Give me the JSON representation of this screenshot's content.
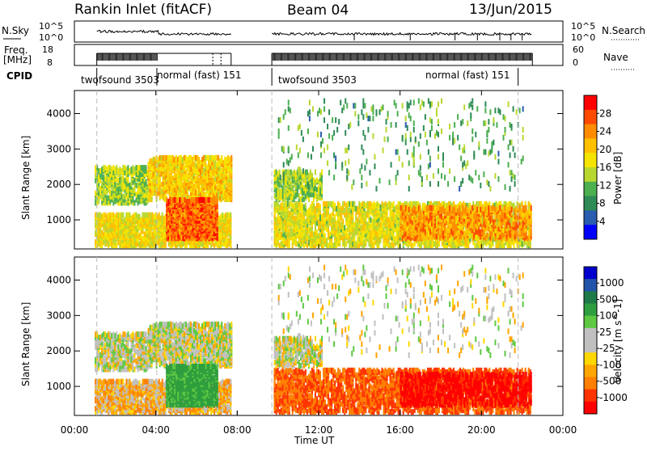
{
  "chart_data": {
    "type": "heatmap",
    "header": {
      "station": "Rankin Inlet (fitACF)",
      "beam": "Beam 04",
      "date": "13/Jun/2015"
    },
    "time_axis": {
      "label": "Time UT",
      "range_hours": [
        0,
        24
      ],
      "ticks": [
        "00:00",
        "04:00",
        "08:00",
        "12:00",
        "16:00",
        "20:00",
        "00:00"
      ],
      "tick_hours": [
        0,
        4,
        8,
        12,
        16,
        20,
        24
      ]
    },
    "data_gaps_hours": [
      [
        7.7,
        9.7
      ],
      [
        22.5,
        24
      ]
    ],
    "mode_boundaries_hours": [
      1.1,
      4.05,
      9.7,
      21.8
    ],
    "noise_panel": {
      "left_label": "N.Sky",
      "right_label": "N.Search",
      "left_ticks": [
        "10^5",
        "10^0"
      ],
      "right_ticks": [
        "10^5",
        "10^0"
      ]
    },
    "freq_panel": {
      "left_label_top": "Freq.",
      "left_label_bottom": "[MHz]",
      "right_label": "Nave",
      "left_ticks": [
        18,
        8
      ],
      "right_ticks": [
        60,
        0
      ]
    },
    "cpid": {
      "label": "CPID",
      "segments": [
        {
          "text": "twofsound 3503",
          "start_hour": 0.0
        },
        {
          "text": "normal (fast) 151",
          "start_hour": 4.05
        },
        {
          "text": "twofsound 3503",
          "start_hour": 9.7
        },
        {
          "text": "normal (fast) 151",
          "start_hour": 17.6
        }
      ]
    },
    "range_axis": {
      "label": "Slant Range [km]",
      "range_km": [
        180,
        4650
      ],
      "ticks": [
        1000,
        2000,
        3000,
        4000
      ]
    },
    "panels": [
      {
        "name": "Power",
        "colorbar_label": "Power [dB]",
        "colorbar_ticks": [
          "28",
          "24",
          "20",
          "16",
          "12",
          "8",
          "4"
        ],
        "colors_top_to_bottom": [
          "#ff0000",
          "#ff4a00",
          "#ff8c00",
          "#ffc000",
          "#f5e400",
          "#b8d830",
          "#4caf50",
          "#2e8b57",
          "#2a5db0",
          "#0000ff"
        ]
      },
      {
        "name": "Velocity",
        "colorbar_label": "Velocity [m s^-1]",
        "colorbar_ticks": [
          "1000",
          "500",
          "100",
          "25",
          "-25",
          "-100",
          "-500",
          "-1000"
        ],
        "colors_top_to_bottom": [
          "#0000cc",
          "#2255aa",
          "#1f7a4a",
          "#2e9e3e",
          "#5ec842",
          "#c0c0c0",
          "#c0c0c0",
          "#ffd700",
          "#ffa500",
          "#ff7f00",
          "#ff3300",
          "#ff0000"
        ]
      }
    ],
    "echo_regions": [
      {
        "t": [
          1.0,
          7.7
        ],
        "r": [
          200,
          1100
        ],
        "pow": 18,
        "vel": -60,
        "dens": 0.7
      },
      {
        "t": [
          1.0,
          3.6
        ],
        "r": [
          1400,
          2400
        ],
        "pow": 14,
        "vel": 10,
        "dens": 0.55
      },
      {
        "t": [
          3.6,
          7.7
        ],
        "r": [
          1500,
          2700
        ],
        "pow": 20,
        "vel": 10,
        "dens": 0.65
      },
      {
        "t": [
          4.5,
          7.0
        ],
        "r": [
          400,
          1500
        ],
        "pow": 27,
        "vel": 150,
        "dens": 0.85
      },
      {
        "t": [
          9.8,
          22.4
        ],
        "r": [
          200,
          1400
        ],
        "pow": 17,
        "vel": -250,
        "dens": 0.55
      },
      {
        "t": [
          9.8,
          12.2
        ],
        "r": [
          1500,
          2300
        ],
        "pow": 14,
        "vel": 10,
        "dens": 0.5
      },
      {
        "t": [
          16.0,
          22.4
        ],
        "r": [
          400,
          1300
        ],
        "pow": 24,
        "vel": -550,
        "dens": 0.5
      },
      {
        "t": [
          10.0,
          22.0
        ],
        "r": [
          1800,
          4300
        ],
        "pow": 10,
        "vel": 0,
        "dens": 0.04
      }
    ]
  }
}
